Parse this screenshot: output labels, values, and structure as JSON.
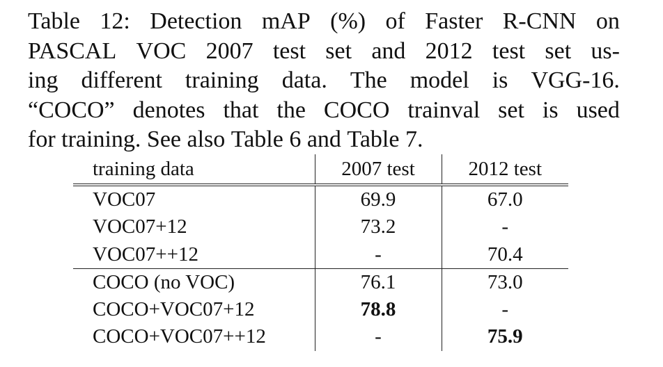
{
  "caption": {
    "lines": [
      [
        "Table",
        "12:",
        "Detection",
        "mAP",
        "(%)",
        "of",
        "Faster",
        "R-CNN",
        "on"
      ],
      [
        "PASCAL",
        "VOC",
        "2007",
        "test",
        "set",
        "and",
        "2012",
        "test",
        "set",
        "us-"
      ],
      [
        "ing",
        "different",
        "training",
        "data.",
        "The",
        "model",
        "is",
        "VGG-16."
      ],
      [
        "“COCO”",
        "denotes",
        "that",
        "the",
        "COCO",
        "trainval",
        "set",
        "is",
        "used"
      ],
      [
        "for",
        "training.",
        "See",
        "also",
        "Table",
        "6",
        "and",
        "Table",
        "7."
      ]
    ]
  },
  "table": {
    "headers": [
      "training data",
      "2007 test",
      "2012 test"
    ],
    "rows": [
      {
        "label": "VOC07",
        "v2007": "69.9",
        "v2012": "67.0",
        "bold2007": false,
        "bold2012": false
      },
      {
        "label": "VOC07+12",
        "v2007": "73.2",
        "v2012": "-",
        "bold2007": false,
        "bold2012": false
      },
      {
        "label": "VOC07++12",
        "v2007": "-",
        "v2012": "70.4",
        "bold2007": false,
        "bold2012": false
      },
      {
        "label": "COCO (no VOC)",
        "v2007": "76.1",
        "v2012": "73.0",
        "bold2007": false,
        "bold2012": false
      },
      {
        "label": "COCO+VOC07+12",
        "v2007": "78.8",
        "v2012": "-",
        "bold2007": true,
        "bold2012": false
      },
      {
        "label": "COCO+VOC07++12",
        "v2007": "-",
        "v2012": "75.9",
        "bold2007": false,
        "bold2012": true
      }
    ]
  }
}
